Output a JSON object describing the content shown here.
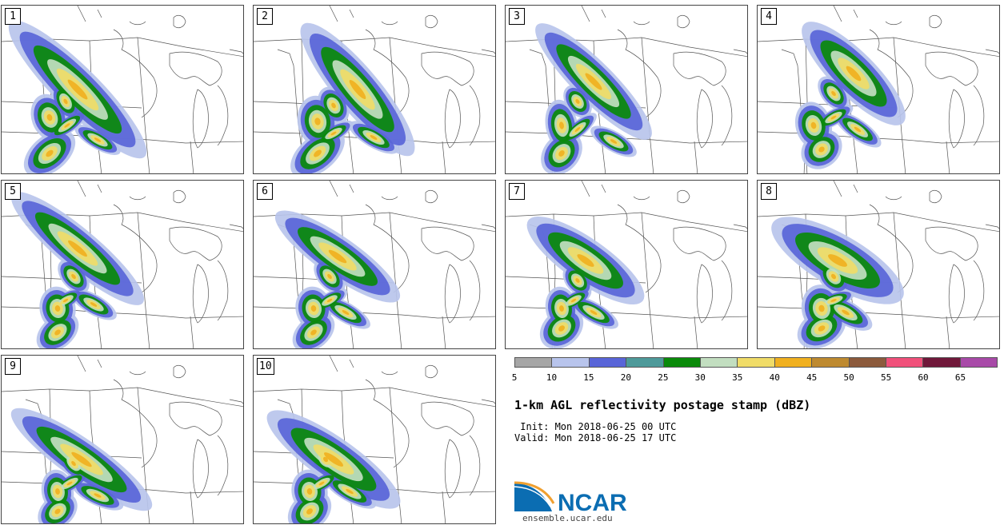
{
  "panels": [
    {
      "label": "1",
      "cells": [
        [
          95,
          105,
          22,
          95,
          -45
        ],
        [
          120,
          168,
          26,
          9,
          30
        ],
        [
          60,
          185,
          30,
          18,
          -40
        ],
        [
          82,
          150,
          24,
          8,
          -35
        ],
        [
          60,
          140,
          18,
          24,
          -20
        ],
        [
          80,
          120,
          12,
          20,
          -30
        ]
      ]
    },
    {
      "label": "2",
      "cells": [
        [
          130,
          105,
          22,
          85,
          -40
        ],
        [
          150,
          165,
          28,
          10,
          30
        ],
        [
          80,
          185,
          32,
          18,
          -40
        ],
        [
          100,
          160,
          22,
          8,
          -30
        ],
        [
          80,
          145,
          20,
          26,
          -10
        ],
        [
          100,
          125,
          14,
          20,
          -30
        ]
      ]
    },
    {
      "label": "3",
      "cells": [
        [
          110,
          95,
          20,
          80,
          -45
        ],
        [
          135,
          170,
          26,
          10,
          30
        ],
        [
          70,
          185,
          24,
          18,
          -50
        ],
        [
          90,
          155,
          24,
          8,
          -40
        ],
        [
          70,
          150,
          16,
          26,
          -10
        ],
        [
          90,
          120,
          12,
          18,
          -35
        ]
      ]
    },
    {
      "label": "4",
      "cells": [
        [
          120,
          85,
          22,
          70,
          -45
        ],
        [
          125,
          155,
          28,
          10,
          35
        ],
        [
          80,
          180,
          22,
          18,
          -40
        ],
        [
          95,
          140,
          22,
          8,
          -30
        ],
        [
          70,
          150,
          18,
          24,
          -15
        ],
        [
          95,
          110,
          12,
          20,
          -40
        ]
      ]
    },
    {
      "label": "5",
      "cells": [
        [
          95,
          85,
          20,
          85,
          -50
        ],
        [
          115,
          155,
          26,
          10,
          30
        ],
        [
          70,
          190,
          24,
          16,
          -40
        ],
        [
          80,
          150,
          20,
          8,
          -30
        ],
        [
          70,
          160,
          18,
          22,
          -10
        ],
        [
          90,
          120,
          12,
          20,
          -40
        ]
      ]
    },
    {
      "label": "6",
      "cells": [
        [
          105,
          95,
          20,
          75,
          -55
        ],
        [
          115,
          165,
          28,
          10,
          30
        ],
        [
          75,
          190,
          24,
          16,
          -40
        ],
        [
          95,
          150,
          20,
          8,
          -30
        ],
        [
          75,
          160,
          18,
          22,
          -10
        ],
        [
          95,
          120,
          12,
          20,
          -40
        ]
      ]
    },
    {
      "label": "7",
      "cells": [
        [
          100,
          100,
          22,
          70,
          -55
        ],
        [
          110,
          165,
          28,
          10,
          30
        ],
        [
          70,
          185,
          24,
          18,
          -40
        ],
        [
          85,
          150,
          20,
          8,
          -30
        ],
        [
          70,
          160,
          16,
          22,
          -10
        ],
        [
          90,
          125,
          12,
          18,
          -40
        ]
      ]
    },
    {
      "label": "8",
      "cells": [
        [
          100,
          100,
          26,
          75,
          -60
        ],
        [
          110,
          165,
          30,
          12,
          30
        ],
        [
          80,
          185,
          26,
          18,
          -30
        ],
        [
          95,
          150,
          22,
          8,
          -20
        ],
        [
          80,
          160,
          20,
          24,
          -10
        ],
        [
          95,
          120,
          14,
          20,
          -40
        ]
      ]
    },
    {
      "label": "9",
      "cells": [
        [
          100,
          130,
          20,
          85,
          -55
        ],
        [
          120,
          175,
          28,
          10,
          25
        ],
        [
          70,
          195,
          22,
          16,
          -40
        ],
        [
          85,
          160,
          22,
          8,
          -30
        ],
        [
          70,
          170,
          16,
          22,
          -10
        ],
        [
          90,
          135,
          12,
          20,
          -40
        ]
      ]
    },
    {
      "label": "10",
      "cells": [
        [
          100,
          130,
          22,
          80,
          -55
        ],
        [
          120,
          170,
          30,
          10,
          30
        ],
        [
          70,
          195,
          24,
          18,
          -40
        ],
        [
          85,
          160,
          22,
          8,
          -30
        ],
        [
          70,
          170,
          18,
          22,
          -10
        ],
        [
          90,
          130,
          14,
          20,
          -40
        ]
      ]
    }
  ],
  "colorbar": {
    "colors": [
      "#a6a6a6",
      "#b8c4ec",
      "#5965d8",
      "#4e9a9a",
      "#0a8a0a",
      "#c2dec0",
      "#f0dc68",
      "#f0b020",
      "#be8a30",
      "#8c5a3c",
      "#f0507a",
      "#70183a",
      "#a84aa8"
    ],
    "ticks": [
      "5",
      "10",
      "15",
      "20",
      "25",
      "30",
      "35",
      "40",
      "45",
      "50",
      "55",
      "60",
      "65"
    ]
  },
  "title": "1-km AGL reflectivity postage stamp (dBZ)",
  "init_line": " Init: Mon 2018-06-25 00 UTC",
  "valid_line": "Valid: Mon 2018-06-25 17 UTC",
  "logo": {
    "text": "NCAR",
    "url": "ensemble.ucar.edu",
    "blue": "#0b6db2",
    "orange": "#f0a030"
  }
}
